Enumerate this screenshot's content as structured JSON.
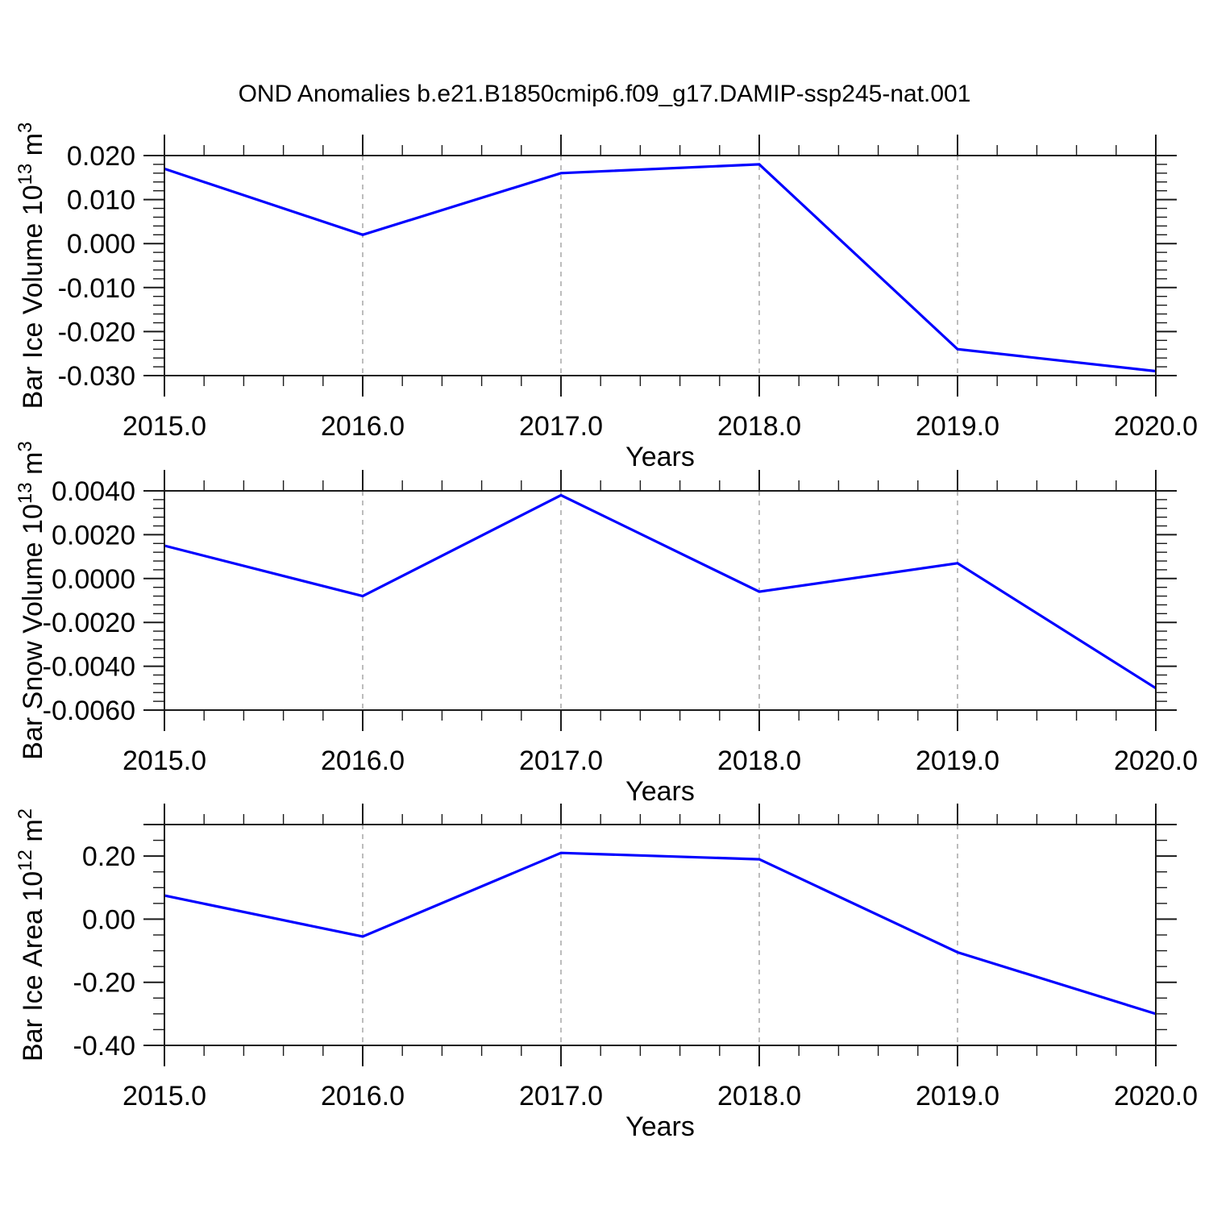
{
  "title": "OND Anomalies b.e21.B1850cmip6.f09_g17.DAMIP-ssp245-nat.001",
  "colors": {
    "background": "#ffffff",
    "line": "#0000ff",
    "grid": "#999999",
    "axis": "#1a1a1a",
    "text": "#000000"
  },
  "chart_data": [
    {
      "name": "bar-ice-volume",
      "type": "line",
      "title": "",
      "xlabel": "Years",
      "ylabel": "Bar Ice Volume 10^13 m^3",
      "ylabel_segments": [
        {
          "text": "Bar Ice Volume 10"
        },
        {
          "text": "13",
          "sup": true
        },
        {
          "text": " m"
        },
        {
          "text": "3",
          "sup": true
        }
      ],
      "x": [
        2015.0,
        2016.0,
        2017.0,
        2018.0,
        2019.0,
        2020.0
      ],
      "values": [
        0.017,
        0.002,
        0.016,
        0.018,
        -0.024,
        -0.029
      ],
      "xlim": [
        2015.0,
        2020.0
      ],
      "ylim": [
        -0.03,
        0.02
      ],
      "x_tick_values": [
        2015,
        2016,
        2017,
        2018,
        2019,
        2020
      ],
      "x_tick_labels": [
        "2015.0",
        "2016.0",
        "2017.0",
        "2018.0",
        "2019.0",
        "2020.0"
      ],
      "x_minor_step": 0.2,
      "y_ticks": [
        {
          "value": 0.02,
          "label": "0.020"
        },
        {
          "value": 0.01,
          "label": "0.010"
        },
        {
          "value": 0.0,
          "label": "0.000"
        },
        {
          "value": -0.01,
          "label": "-0.010"
        },
        {
          "value": -0.02,
          "label": "-0.020"
        },
        {
          "value": -0.03,
          "label": "-0.030"
        }
      ],
      "y_major_step": 0.01,
      "y_minor_step": 0.002,
      "grid_x": [
        2016,
        2017,
        2018,
        2019
      ],
      "grid_style": "vertical-dashed",
      "legend": null
    },
    {
      "name": "bar-snow-volume",
      "type": "line",
      "title": "",
      "xlabel": "Years",
      "ylabel": "Bar Snow Volume 10^13 m^3",
      "ylabel_segments": [
        {
          "text": "Bar Snow Volume 10"
        },
        {
          "text": "13",
          "sup": true
        },
        {
          "text": " m"
        },
        {
          "text": "3",
          "sup": true
        }
      ],
      "x": [
        2015.0,
        2016.0,
        2017.0,
        2018.0,
        2019.0,
        2020.0
      ],
      "values": [
        0.0015,
        -0.0008,
        0.0038,
        -0.0006,
        0.0007,
        -0.005
      ],
      "xlim": [
        2015.0,
        2020.0
      ],
      "ylim": [
        -0.006,
        0.004
      ],
      "x_tick_values": [
        2015,
        2016,
        2017,
        2018,
        2019,
        2020
      ],
      "x_tick_labels": [
        "2015.0",
        "2016.0",
        "2017.0",
        "2018.0",
        "2019.0",
        "2020.0"
      ],
      "x_minor_step": 0.2,
      "y_ticks": [
        {
          "value": 0.004,
          "label": "0.0040"
        },
        {
          "value": 0.002,
          "label": "0.0020"
        },
        {
          "value": 0.0,
          "label": "0.0000"
        },
        {
          "value": -0.002,
          "label": "-0.0020"
        },
        {
          "value": -0.004,
          "label": "-0.0040"
        },
        {
          "value": -0.006,
          "label": "-0.0060"
        }
      ],
      "y_major_step": 0.002,
      "y_minor_step": 0.0004,
      "grid_x": [
        2016,
        2017,
        2018,
        2019
      ],
      "grid_style": "vertical-dashed",
      "legend": null
    },
    {
      "name": "bar-ice-area",
      "type": "line",
      "title": "",
      "xlabel": "Years",
      "ylabel": "Bar Ice Area 10^12 m^2",
      "ylabel_segments": [
        {
          "text": "Bar Ice Area 10"
        },
        {
          "text": "12",
          "sup": true
        },
        {
          "text": " m"
        },
        {
          "text": "2",
          "sup": true
        }
      ],
      "x": [
        2015.0,
        2016.0,
        2017.0,
        2018.0,
        2019.0,
        2020.0
      ],
      "values": [
        0.075,
        -0.055,
        0.21,
        0.19,
        -0.105,
        -0.3
      ],
      "xlim": [
        2015.0,
        2020.0
      ],
      "ylim": [
        -0.4,
        0.3
      ],
      "x_tick_values": [
        2015,
        2016,
        2017,
        2018,
        2019,
        2020
      ],
      "x_tick_labels": [
        "2015.0",
        "2016.0",
        "2017.0",
        "2018.0",
        "2019.0",
        "2020.0"
      ],
      "x_minor_step": 0.2,
      "y_ticks": [
        {
          "value": 0.2,
          "label": "0.20"
        },
        {
          "value": 0.0,
          "label": "0.00"
        },
        {
          "value": -0.2,
          "label": "-0.20"
        },
        {
          "value": -0.4,
          "label": "-0.40"
        }
      ],
      "y_major_step": 0.2,
      "y_minor_step": 0.05,
      "grid_x": [
        2016,
        2017,
        2018,
        2019
      ],
      "grid_style": "vertical-dashed",
      "legend": null
    }
  ]
}
